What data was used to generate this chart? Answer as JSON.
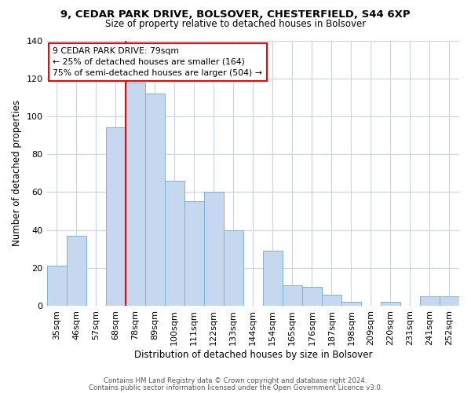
{
  "title": "9, CEDAR PARK DRIVE, BOLSOVER, CHESTERFIELD, S44 6XP",
  "subtitle": "Size of property relative to detached houses in Bolsover",
  "xlabel": "Distribution of detached houses by size in Bolsover",
  "ylabel": "Number of detached properties",
  "bar_color": "#c5d8f0",
  "bar_edge_color": "#7ab4d8",
  "categories": [
    "35sqm",
    "46sqm",
    "57sqm",
    "68sqm",
    "78sqm",
    "89sqm",
    "100sqm",
    "111sqm",
    "122sqm",
    "133sqm",
    "144sqm",
    "154sqm",
    "165sqm",
    "176sqm",
    "187sqm",
    "198sqm",
    "209sqm",
    "220sqm",
    "231sqm",
    "241sqm",
    "252sqm"
  ],
  "values": [
    21,
    37,
    0,
    94,
    118,
    112,
    66,
    55,
    60,
    40,
    0,
    29,
    11,
    10,
    6,
    2,
    0,
    2,
    0,
    5,
    5
  ],
  "ylim": [
    0,
    140
  ],
  "yticks": [
    0,
    20,
    40,
    60,
    80,
    100,
    120,
    140
  ],
  "annotation_title": "9 CEDAR PARK DRIVE: 79sqm",
  "annotation_line1": "← 25% of detached houses are smaller (164)",
  "annotation_line2": "75% of semi-detached houses are larger (504) →",
  "footer1": "Contains HM Land Registry data © Crown copyright and database right 2024.",
  "footer2": "Contains public sector information licensed under the Open Government Licence v3.0.",
  "background_color": "#ffffff",
  "grid_color": "#c8d4e4",
  "red_line_index": 4
}
